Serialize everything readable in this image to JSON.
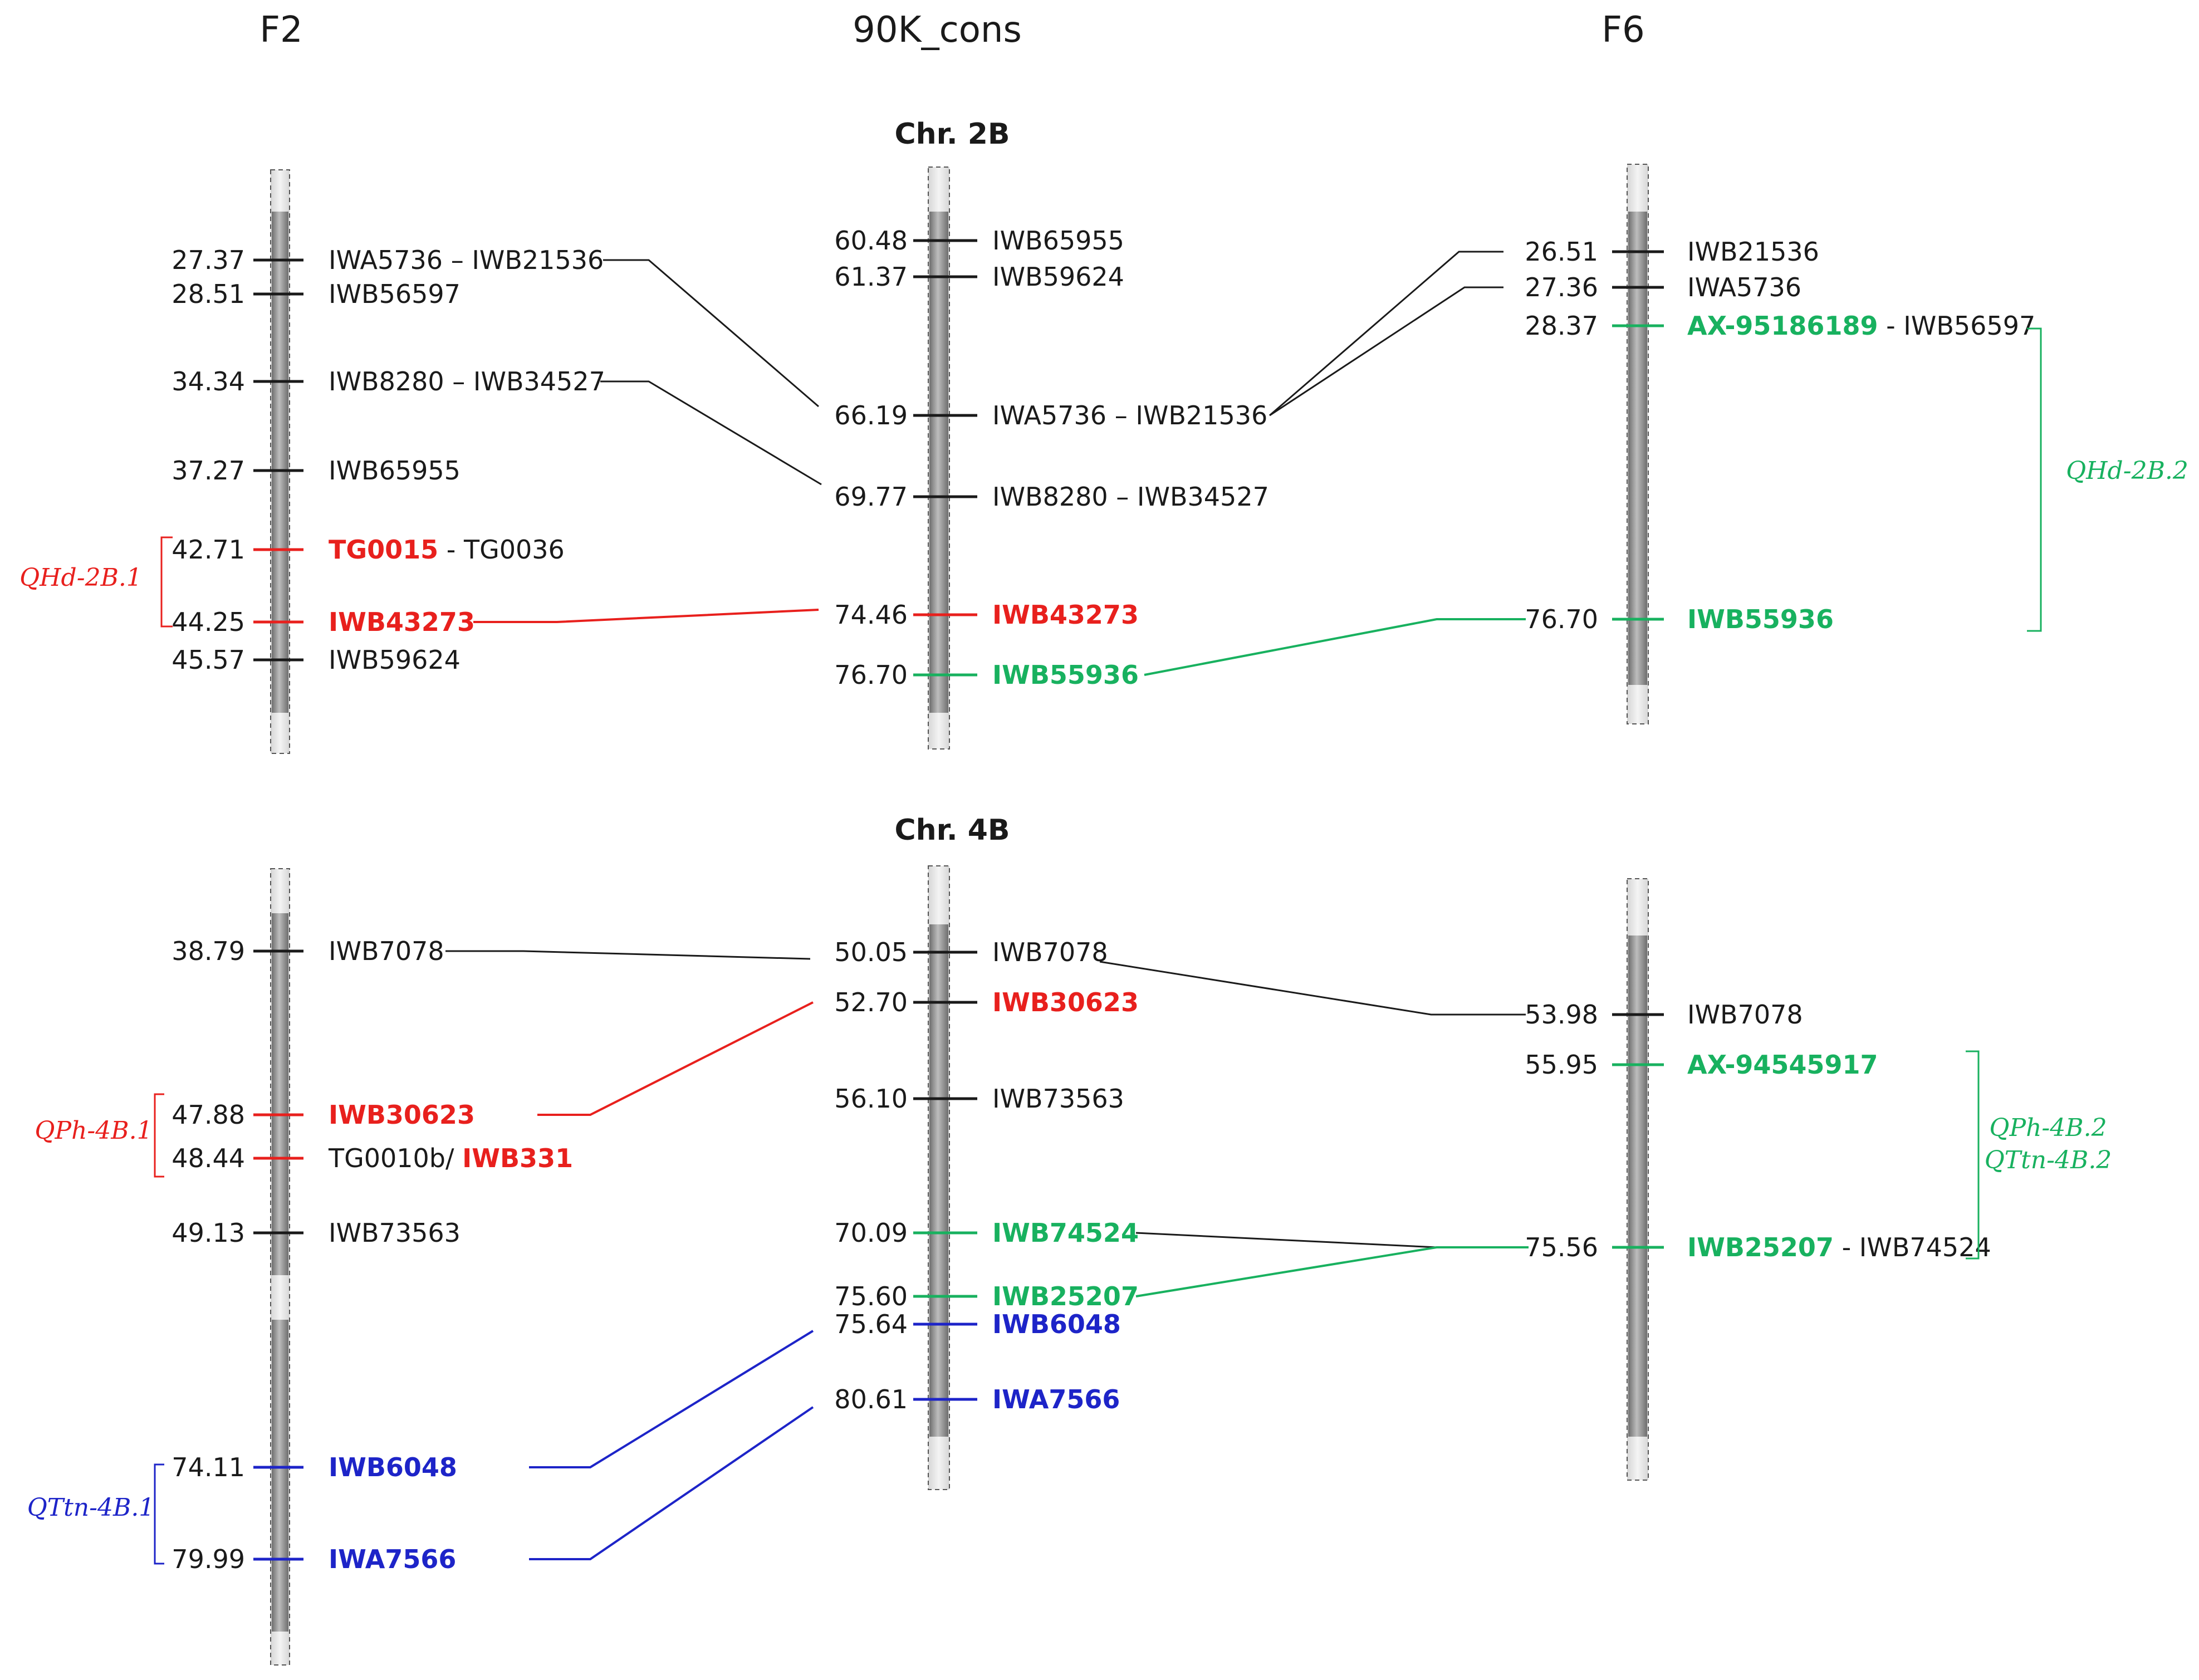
{
  "columns": [
    "F2",
    "90K_cons",
    "F6"
  ],
  "colors": {
    "black": "#1a1a1a",
    "red": "#e8201d",
    "green": "#18b15f",
    "blue": "#1d24c8",
    "bar": "#8f8f8f"
  },
  "chromosomes": [
    {
      "title": "Chr. 2B",
      "maps": [
        {
          "key": "F2",
          "markers": [
            {
              "pos": "27.37",
              "segs": [
                {
                  "t": "IWA5736 – IWB21536",
                  "c": "black"
                }
              ],
              "tc": "black"
            },
            {
              "pos": "28.51",
              "segs": [
                {
                  "t": "IWB56597",
                  "c": "black"
                }
              ],
              "tc": "black"
            },
            {
              "pos": "34.34",
              "segs": [
                {
                  "t": "IWB8280 – IWB34527",
                  "c": "black"
                }
              ],
              "tc": "black"
            },
            {
              "pos": "37.27",
              "segs": [
                {
                  "t": "IWB65955",
                  "c": "black"
                }
              ],
              "tc": "black"
            },
            {
              "pos": "42.71",
              "segs": [
                {
                  "t": "TG0015",
                  "c": "red",
                  "b": true
                },
                {
                  "t": " - TG0036",
                  "c": "black"
                }
              ],
              "tc": "red"
            },
            {
              "pos": "44.25",
              "segs": [
                {
                  "t": "IWB43273",
                  "c": "red",
                  "b": true
                }
              ],
              "tc": "red"
            },
            {
              "pos": "45.57",
              "segs": [
                {
                  "t": "IWB59624",
                  "c": "black"
                }
              ],
              "tc": "black"
            }
          ]
        },
        {
          "key": "90K",
          "markers": [
            {
              "pos": "60.48",
              "segs": [
                {
                  "t": "IWB65955",
                  "c": "black"
                }
              ],
              "tc": "black"
            },
            {
              "pos": "61.37",
              "segs": [
                {
                  "t": "IWB59624",
                  "c": "black"
                }
              ],
              "tc": "black"
            },
            {
              "pos": "66.19",
              "segs": [
                {
                  "t": "IWA5736 – IWB21536",
                  "c": "black"
                }
              ],
              "tc": "black"
            },
            {
              "pos": "69.77",
              "segs": [
                {
                  "t": "IWB8280 – IWB34527",
                  "c": "black"
                }
              ],
              "tc": "black"
            },
            {
              "pos": "74.46",
              "segs": [
                {
                  "t": "IWB43273",
                  "c": "red",
                  "b": true
                }
              ],
              "tc": "red"
            },
            {
              "pos": "76.70",
              "segs": [
                {
                  "t": "IWB55936",
                  "c": "green",
                  "b": true
                }
              ],
              "tc": "green"
            }
          ]
        },
        {
          "key": "F6",
          "markers": [
            {
              "pos": "26.51",
              "segs": [
                {
                  "t": "IWB21536",
                  "c": "black"
                }
              ],
              "tc": "black"
            },
            {
              "pos": "27.36",
              "segs": [
                {
                  "t": "IWA5736",
                  "c": "black"
                }
              ],
              "tc": "black"
            },
            {
              "pos": "28.37",
              "segs": [
                {
                  "t": "AX-95186189",
                  "c": "green",
                  "b": true
                },
                {
                  "t": " - IWB56597",
                  "c": "black"
                }
              ],
              "tc": "green"
            },
            {
              "pos": "76.70",
              "segs": [
                {
                  "t": "IWB55936",
                  "c": "green",
                  "b": true
                }
              ],
              "tc": "green"
            }
          ]
        }
      ],
      "qtls": [
        {
          "lines": [
            "QHd-2B.1"
          ],
          "color": "red"
        },
        {
          "lines": [
            "QHd-2B.2"
          ],
          "color": "green"
        }
      ]
    },
    {
      "title": "Chr. 4B",
      "maps": [
        {
          "key": "F2",
          "markers": [
            {
              "pos": "38.79",
              "segs": [
                {
                  "t": "IWB7078",
                  "c": "black"
                }
              ],
              "tc": "black"
            },
            {
              "pos": "47.88",
              "segs": [
                {
                  "t": "IWB30623",
                  "c": "red",
                  "b": true
                }
              ],
              "tc": "red"
            },
            {
              "pos": "48.44",
              "segs": [
                {
                  "t": "TG0010b/ ",
                  "c": "black"
                },
                {
                  "t": "IWB331",
                  "c": "red",
                  "b": true
                }
              ],
              "tc": "red"
            },
            {
              "pos": "49.13",
              "segs": [
                {
                  "t": "IWB73563",
                  "c": "black"
                }
              ],
              "tc": "black"
            },
            {
              "pos": "74.11",
              "segs": [
                {
                  "t": "IWB6048",
                  "c": "blue",
                  "b": true
                }
              ],
              "tc": "blue"
            },
            {
              "pos": "79.99",
              "segs": [
                {
                  "t": "IWA7566",
                  "c": "blue",
                  "b": true
                }
              ],
              "tc": "blue"
            }
          ]
        },
        {
          "key": "90K",
          "markers": [
            {
              "pos": "50.05",
              "segs": [
                {
                  "t": "IWB7078",
                  "c": "black"
                }
              ],
              "tc": "black"
            },
            {
              "pos": "52.70",
              "segs": [
                {
                  "t": "IWB30623",
                  "c": "red",
                  "b": true
                }
              ],
              "tc": "black"
            },
            {
              "pos": "56.10",
              "segs": [
                {
                  "t": "IWB73563",
                  "c": "black"
                }
              ],
              "tc": "black"
            },
            {
              "pos": "70.09",
              "segs": [
                {
                  "t": "IWB74524",
                  "c": "green",
                  "b": true
                }
              ],
              "tc": "green"
            },
            {
              "pos": "75.60",
              "segs": [
                {
                  "t": "IWB25207",
                  "c": "green",
                  "b": true
                }
              ],
              "tc": "green"
            },
            {
              "pos": "75.64",
              "segs": [
                {
                  "t": "IWB6048",
                  "c": "blue",
                  "b": true
                }
              ],
              "tc": "blue"
            },
            {
              "pos": "80.61",
              "segs": [
                {
                  "t": "IWA7566",
                  "c": "blue",
                  "b": true
                }
              ],
              "tc": "blue"
            }
          ]
        },
        {
          "key": "F6",
          "markers": [
            {
              "pos": "53.98",
              "segs": [
                {
                  "t": "IWB7078",
                  "c": "black"
                }
              ],
              "tc": "black"
            },
            {
              "pos": "55.95",
              "segs": [
                {
                  "t": "AX-94545917",
                  "c": "green",
                  "b": true
                }
              ],
              "tc": "green"
            },
            {
              "pos": "75.56",
              "segs": [
                {
                  "t": "IWB25207",
                  "c": "green",
                  "b": true
                },
                {
                  "t": " - IWB74524",
                  "c": "black"
                }
              ],
              "tc": "green"
            }
          ]
        }
      ],
      "qtls": [
        {
          "lines": [
            "QPh-4B.1"
          ],
          "color": "red"
        },
        {
          "lines": [
            "QTtn-4B.1"
          ],
          "color": "blue"
        },
        {
          "lines": [
            "QPh-4B.2",
            "QTtn-4B.2"
          ],
          "color": "green"
        }
      ]
    }
  ],
  "connections": [
    {
      "chr": 0,
      "from": "F2:0",
      "to": "90K:2",
      "color": "black"
    },
    {
      "chr": 0,
      "from": "F2:2",
      "to": "90K:3",
      "color": "black"
    },
    {
      "chr": 0,
      "from": "F2:5",
      "to": "90K:4",
      "color": "red"
    },
    {
      "chr": 0,
      "from": "F6:0",
      "to": "90K:2",
      "color": "black"
    },
    {
      "chr": 0,
      "from": "F6:1",
      "to": "90K:2",
      "color": "black"
    },
    {
      "chr": 0,
      "from": "F6:3",
      "to": "90K:5",
      "color": "green"
    },
    {
      "chr": 1,
      "from": "F2:0",
      "to": "90K:0",
      "color": "black"
    },
    {
      "chr": 1,
      "from": "F2:1",
      "to": "90K:1",
      "color": "red"
    },
    {
      "chr": 1,
      "from": "F2:4",
      "to": "90K:5",
      "color": "blue"
    },
    {
      "chr": 1,
      "from": "F2:5",
      "to": "90K:6",
      "color": "blue"
    },
    {
      "chr": 1,
      "from": "F6:0",
      "to": "90K:0",
      "color": "black"
    },
    {
      "chr": 1,
      "from": "F6:2",
      "to": "90K:3",
      "color": "black"
    },
    {
      "chr": 1,
      "from": "F6:2",
      "to": "90K:4",
      "color": "green"
    }
  ]
}
